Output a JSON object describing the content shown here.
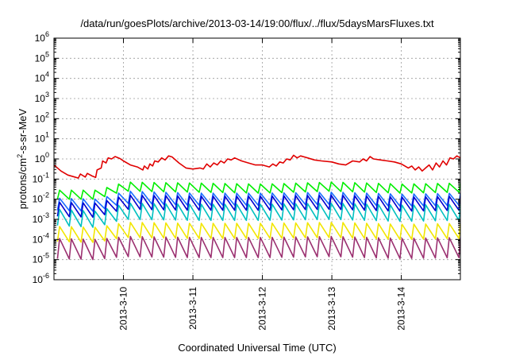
{
  "chart_data": {
    "type": "line",
    "title": "/data/run/goesPlots/archive/2013-03-14/19:00/flux/../flux/5daysMarsFluxes.txt",
    "xlabel": "Coordinated Universal Time (UTC)",
    "ylabel_parts": [
      "protons/cm",
      "2",
      "-s-sr-MeV"
    ],
    "yscale": "log",
    "ylim_exp": [
      -6,
      6
    ],
    "y_tick_exponents": [
      -6,
      -5,
      -4,
      -3,
      -2,
      -1,
      0,
      1,
      2,
      3,
      4,
      5,
      6
    ],
    "y_tick_base": "10",
    "x_tick_labels": [
      "2013-3-10",
      "2013-3-11",
      "2013-3-12",
      "2013-3-13",
      "2013-3-14"
    ],
    "x_tick_days": [
      1,
      2,
      3,
      4,
      5
    ],
    "xlim_days": [
      0,
      5.85
    ],
    "grid": true,
    "series": [
      {
        "color": "#e00000",
        "log_points": [
          [
            0.0,
            -0.3
          ],
          [
            0.1,
            -0.6
          ],
          [
            0.2,
            -0.8
          ],
          [
            0.3,
            -0.9
          ],
          [
            0.35,
            -0.95
          ],
          [
            0.38,
            -0.75
          ],
          [
            0.45,
            -0.9
          ],
          [
            0.48,
            -0.72
          ],
          [
            0.55,
            -0.85
          ],
          [
            0.6,
            -0.92
          ],
          [
            0.62,
            -0.55
          ],
          [
            0.68,
            -0.45
          ],
          [
            0.7,
            -0.1
          ],
          [
            0.75,
            -0.2
          ],
          [
            0.78,
            0.05
          ],
          [
            0.83,
            0.0
          ],
          [
            0.88,
            0.12
          ],
          [
            0.95,
            0.02
          ],
          [
            1.0,
            -0.1
          ],
          [
            1.1,
            -0.3
          ],
          [
            1.2,
            -0.4
          ],
          [
            1.28,
            -0.55
          ],
          [
            1.3,
            -0.35
          ],
          [
            1.35,
            -0.5
          ],
          [
            1.38,
            -0.25
          ],
          [
            1.42,
            -0.35
          ],
          [
            1.45,
            -0.1
          ],
          [
            1.5,
            -0.15
          ],
          [
            1.55,
            0.05
          ],
          [
            1.6,
            -0.05
          ],
          [
            1.65,
            0.15
          ],
          [
            1.7,
            0.1
          ],
          [
            1.8,
            -0.2
          ],
          [
            1.9,
            -0.45
          ],
          [
            2.0,
            -0.5
          ],
          [
            2.1,
            -0.45
          ],
          [
            2.15,
            -0.5
          ],
          [
            2.2,
            -0.25
          ],
          [
            2.25,
            -0.4
          ],
          [
            2.3,
            -0.2
          ],
          [
            2.35,
            -0.3
          ],
          [
            2.4,
            -0.1
          ],
          [
            2.45,
            -0.2
          ],
          [
            2.5,
            0.0
          ],
          [
            2.55,
            -0.05
          ],
          [
            2.6,
            0.05
          ],
          [
            2.7,
            -0.1
          ],
          [
            2.8,
            -0.2
          ],
          [
            2.9,
            -0.3
          ],
          [
            3.0,
            -0.3
          ],
          [
            3.1,
            -0.4
          ],
          [
            3.15,
            -0.25
          ],
          [
            3.2,
            -0.35
          ],
          [
            3.25,
            -0.15
          ],
          [
            3.3,
            -0.2
          ],
          [
            3.35,
            0.0
          ],
          [
            3.4,
            -0.05
          ],
          [
            3.45,
            0.18
          ],
          [
            3.5,
            0.05
          ],
          [
            3.55,
            0.15
          ],
          [
            3.65,
            0.05
          ],
          [
            3.75,
            -0.05
          ],
          [
            3.85,
            -0.1
          ],
          [
            4.0,
            -0.15
          ],
          [
            4.1,
            -0.25
          ],
          [
            4.2,
            -0.3
          ],
          [
            4.3,
            -0.1
          ],
          [
            4.4,
            -0.15
          ],
          [
            4.45,
            0.0
          ],
          [
            4.5,
            -0.1
          ],
          [
            4.55,
            0.12
          ],
          [
            4.6,
            0.0
          ],
          [
            4.7,
            -0.05
          ],
          [
            4.8,
            -0.1
          ],
          [
            4.9,
            -0.15
          ],
          [
            5.0,
            -0.25
          ],
          [
            5.1,
            -0.45
          ],
          [
            5.15,
            -0.35
          ],
          [
            5.2,
            -0.55
          ],
          [
            5.25,
            -0.4
          ],
          [
            5.3,
            -0.6
          ],
          [
            5.35,
            -0.45
          ],
          [
            5.4,
            -0.3
          ],
          [
            5.45,
            -0.55
          ],
          [
            5.5,
            -0.2
          ],
          [
            5.55,
            -0.4
          ],
          [
            5.6,
            -0.1
          ],
          [
            5.65,
            -0.3
          ],
          [
            5.7,
            0.05
          ],
          [
            5.75,
            0.0
          ],
          [
            5.8,
            0.15
          ],
          [
            5.85,
            0.05
          ]
        ]
      },
      {
        "color": "#00ee00",
        "sawtooth": {
          "start": 0.05,
          "end": 5.85,
          "period": 0.17,
          "lows": [
            [
              0,
              -2.0
            ],
            [
              0.6,
              -2.0
            ],
            [
              1.0,
              -1.6
            ],
            [
              2.0,
              -1.65
            ],
            [
              3.0,
              -1.7
            ],
            [
              4.0,
              -1.6
            ],
            [
              5.0,
              -1.7
            ],
            [
              5.85,
              -1.65
            ]
          ],
          "amp": 0.45
        }
      },
      {
        "color": "#1a6cff",
        "sawtooth": {
          "start": 0.05,
          "end": 5.85,
          "period": 0.17,
          "lows": [
            [
              0,
              -2.55
            ],
            [
              0.6,
              -2.6
            ],
            [
              1.0,
              -2.2
            ],
            [
              2.0,
              -2.3
            ],
            [
              3.0,
              -2.3
            ],
            [
              4.0,
              -2.25
            ],
            [
              5.0,
              -2.35
            ],
            [
              5.85,
              -2.3
            ]
          ],
          "amp": 0.6
        }
      },
      {
        "color": "#0000d0",
        "sawtooth": {
          "start": 0.05,
          "end": 5.85,
          "period": 0.17,
          "lows": [
            [
              0,
              -2.85
            ],
            [
              0.6,
              -2.9
            ],
            [
              1.0,
              -2.5
            ],
            [
              2.0,
              -2.55
            ],
            [
              3.0,
              -2.55
            ],
            [
              4.0,
              -2.5
            ],
            [
              5.0,
              -2.6
            ],
            [
              5.85,
              -2.55
            ]
          ],
          "amp": 0.7
        }
      },
      {
        "color": "#00c0c0",
        "sawtooth": {
          "start": 0.05,
          "end": 5.85,
          "period": 0.17,
          "lows": [
            [
              0,
              -3.3
            ],
            [
              0.6,
              -3.4
            ],
            [
              1.0,
              -3.0
            ],
            [
              2.0,
              -3.05
            ],
            [
              3.0,
              -3.05
            ],
            [
              4.0,
              -3.0
            ],
            [
              5.0,
              -3.1
            ],
            [
              5.85,
              -3.05
            ]
          ],
          "amp": 0.8
        }
      },
      {
        "color": "#f2e600",
        "sawtooth": {
          "start": 0.05,
          "end": 5.85,
          "period": 0.17,
          "lows": [
            [
              0,
              -4.1
            ],
            [
              0.6,
              -4.15
            ],
            [
              1.0,
              -3.9
            ],
            [
              2.0,
              -3.95
            ],
            [
              3.0,
              -3.95
            ],
            [
              4.0,
              -3.9
            ],
            [
              5.0,
              -4.0
            ],
            [
              5.85,
              -3.95
            ]
          ],
          "amp": 0.75
        }
      },
      {
        "color": "#9b3070",
        "sawtooth": {
          "start": 0.05,
          "end": 5.85,
          "period": 0.17,
          "lows": [
            [
              0,
              -4.95
            ],
            [
              0.6,
              -5.0
            ],
            [
              1.0,
              -4.85
            ],
            [
              2.0,
              -4.9
            ],
            [
              3.0,
              -4.9
            ],
            [
              4.0,
              -4.85
            ],
            [
              5.0,
              -4.95
            ],
            [
              5.85,
              -4.9
            ]
          ],
          "amp": 1.0
        }
      }
    ]
  }
}
